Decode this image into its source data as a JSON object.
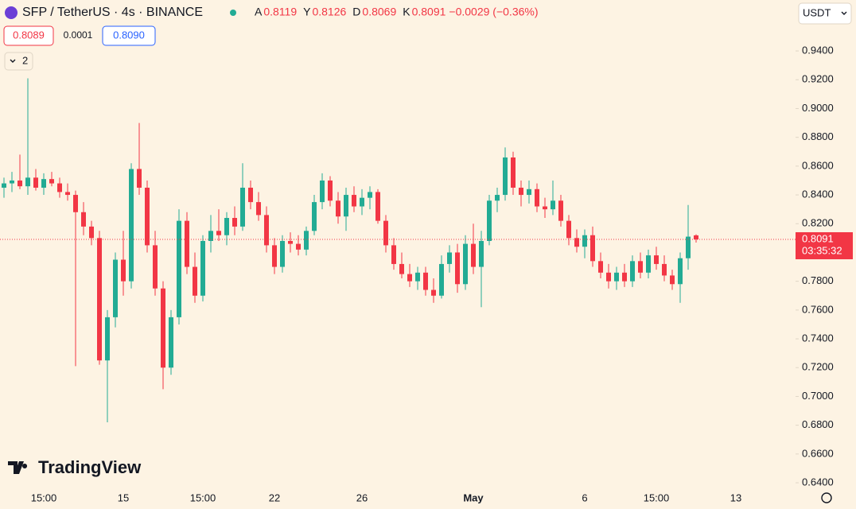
{
  "chart_data": {
    "type": "candlestick",
    "title": "SFP / TetherUS · 4s · BINANCE",
    "legend_labels": [
      "A",
      "Y",
      "D",
      "K"
    ],
    "change": "−0.0029 (−0.36%)",
    "bid": 0.8089,
    "spread": 0.0001,
    "ask": {
      "value": 0.809,
      "label": "0.8090"
    },
    "indicators_count": 2,
    "currency": "USDT",
    "brand": "TradingView",
    "countdown": "03:35:32",
    "up_color": "#22ab94",
    "down_color": "#f23645",
    "grid": false,
    "categories": [
      null,
      null,
      null,
      null,
      null,
      "15:00",
      null,
      null,
      null,
      null,
      null,
      null,
      null,
      null,
      null,
      "15",
      null,
      null,
      null,
      null,
      null,
      null,
      null,
      null,
      null,
      "15:00",
      null,
      null,
      null,
      null,
      null,
      null,
      null,
      null,
      "22",
      null,
      null,
      null,
      null,
      null,
      null,
      null,
      null,
      null,
      null,
      "26",
      null,
      null,
      null,
      null,
      null,
      null,
      null,
      null,
      null,
      null,
      null,
      null,
      null,
      "May",
      null,
      null,
      null,
      null,
      null,
      null,
      null,
      null,
      null,
      null,
      null,
      null,
      null,
      "6",
      null,
      null,
      null,
      null,
      null,
      null,
      null,
      null,
      "15:00",
      null,
      null,
      null,
      null,
      null,
      null,
      null,
      null,
      null,
      "13",
      null,
      null,
      null,
      null,
      null,
      null,
      null
    ],
    "ohlc": [
      [
        0.845,
        0.852,
        0.838,
        0.848
      ],
      [
        0.848,
        0.856,
        0.842,
        0.85
      ],
      [
        0.85,
        0.868,
        0.844,
        0.846
      ],
      [
        0.846,
        0.921,
        0.84,
        0.852
      ],
      [
        0.852,
        0.858,
        0.843,
        0.845
      ],
      [
        0.845,
        0.855,
        0.84,
        0.851
      ],
      [
        0.851,
        0.856,
        0.846,
        0.848
      ],
      [
        0.848,
        0.852,
        0.838,
        0.842
      ],
      [
        0.842,
        0.848,
        0.836,
        0.84
      ],
      [
        0.84,
        0.843,
        0.721,
        0.828
      ],
      [
        0.828,
        0.835,
        0.812,
        0.818
      ],
      [
        0.818,
        0.822,
        0.805,
        0.81
      ],
      [
        0.81,
        0.815,
        0.722,
        0.725
      ],
      [
        0.725,
        0.76,
        0.682,
        0.755
      ],
      [
        0.755,
        0.8,
        0.748,
        0.795
      ],
      [
        0.795,
        0.815,
        0.77,
        0.78
      ],
      [
        0.78,
        0.862,
        0.775,
        0.858
      ],
      [
        0.858,
        0.89,
        0.84,
        0.845
      ],
      [
        0.845,
        0.85,
        0.8,
        0.805
      ],
      [
        0.805,
        0.815,
        0.77,
        0.775
      ],
      [
        0.775,
        0.78,
        0.705,
        0.72
      ],
      [
        0.72,
        0.76,
        0.715,
        0.755
      ],
      [
        0.755,
        0.83,
        0.75,
        0.822
      ],
      [
        0.822,
        0.828,
        0.785,
        0.79
      ],
      [
        0.79,
        0.8,
        0.765,
        0.77
      ],
      [
        0.77,
        0.812,
        0.766,
        0.808
      ],
      [
        0.808,
        0.826,
        0.8,
        0.815
      ],
      [
        0.815,
        0.83,
        0.808,
        0.812
      ],
      [
        0.812,
        0.828,
        0.805,
        0.824
      ],
      [
        0.824,
        0.832,
        0.812,
        0.818
      ],
      [
        0.818,
        0.862,
        0.815,
        0.845
      ],
      [
        0.845,
        0.85,
        0.83,
        0.835
      ],
      [
        0.835,
        0.842,
        0.822,
        0.826
      ],
      [
        0.826,
        0.832,
        0.8,
        0.805
      ],
      [
        0.805,
        0.81,
        0.785,
        0.79
      ],
      [
        0.79,
        0.812,
        0.786,
        0.808
      ],
      [
        0.808,
        0.814,
        0.8,
        0.806
      ],
      [
        0.806,
        0.812,
        0.798,
        0.802
      ],
      [
        0.802,
        0.818,
        0.798,
        0.815
      ],
      [
        0.815,
        0.84,
        0.812,
        0.835
      ],
      [
        0.835,
        0.855,
        0.83,
        0.85
      ],
      [
        0.85,
        0.853,
        0.832,
        0.836
      ],
      [
        0.836,
        0.842,
        0.82,
        0.825
      ],
      [
        0.825,
        0.845,
        0.815,
        0.84
      ],
      [
        0.84,
        0.846,
        0.828,
        0.832
      ],
      [
        0.832,
        0.844,
        0.826,
        0.838
      ],
      [
        0.838,
        0.846,
        0.83,
        0.842
      ],
      [
        0.842,
        0.844,
        0.82,
        0.822
      ],
      [
        0.822,
        0.826,
        0.8,
        0.805
      ],
      [
        0.805,
        0.81,
        0.788,
        0.792
      ],
      [
        0.792,
        0.8,
        0.782,
        0.785
      ],
      [
        0.785,
        0.792,
        0.776,
        0.78
      ],
      [
        0.78,
        0.79,
        0.774,
        0.786
      ],
      [
        0.786,
        0.79,
        0.77,
        0.774
      ],
      [
        0.774,
        0.782,
        0.765,
        0.77
      ],
      [
        0.77,
        0.798,
        0.768,
        0.792
      ],
      [
        0.792,
        0.805,
        0.786,
        0.8
      ],
      [
        0.8,
        0.806,
        0.772,
        0.778
      ],
      [
        0.778,
        0.812,
        0.774,
        0.806
      ],
      [
        0.806,
        0.82,
        0.785,
        0.79
      ],
      [
        0.79,
        0.815,
        0.762,
        0.808
      ],
      [
        0.808,
        0.84,
        0.805,
        0.836
      ],
      [
        0.836,
        0.845,
        0.828,
        0.84
      ],
      [
        0.84,
        0.873,
        0.836,
        0.866
      ],
      [
        0.866,
        0.87,
        0.84,
        0.845
      ],
      [
        0.845,
        0.85,
        0.832,
        0.84
      ],
      [
        0.84,
        0.85,
        0.834,
        0.844
      ],
      [
        0.844,
        0.848,
        0.828,
        0.832
      ],
      [
        0.832,
        0.838,
        0.824,
        0.83
      ],
      [
        0.83,
        0.85,
        0.826,
        0.836
      ],
      [
        0.836,
        0.84,
        0.818,
        0.822
      ],
      [
        0.822,
        0.826,
        0.805,
        0.81
      ],
      [
        0.81,
        0.816,
        0.8,
        0.804
      ],
      [
        0.804,
        0.816,
        0.796,
        0.812
      ],
      [
        0.812,
        0.818,
        0.79,
        0.794
      ],
      [
        0.794,
        0.8,
        0.782,
        0.786
      ],
      [
        0.786,
        0.792,
        0.775,
        0.78
      ],
      [
        0.78,
        0.79,
        0.774,
        0.786
      ],
      [
        0.786,
        0.792,
        0.776,
        0.78
      ],
      [
        0.78,
        0.798,
        0.776,
        0.794
      ],
      [
        0.794,
        0.8,
        0.782,
        0.786
      ],
      [
        0.786,
        0.802,
        0.782,
        0.798
      ],
      [
        0.798,
        0.804,
        0.788,
        0.792
      ],
      [
        0.792,
        0.798,
        0.78,
        0.784
      ],
      [
        0.784,
        0.788,
        0.774,
        0.778
      ],
      [
        0.778,
        0.8,
        0.765,
        0.796
      ],
      [
        0.796,
        0.833,
        0.788,
        0.811
      ],
      [
        0.8119,
        0.8126,
        0.8069,
        0.8091
      ],
      null,
      null,
      null,
      null,
      null,
      null,
      null,
      null,
      null,
      null,
      null,
      null
    ],
    "ylim": [
      0.6356,
      0.9754
    ],
    "yticks": [
      {
        "value": 0.94,
        "label": "0.9400"
      },
      {
        "value": 0.92,
        "label": "0.9200"
      },
      {
        "value": 0.9,
        "label": "0.9000"
      },
      {
        "value": 0.88,
        "label": "0.8800"
      },
      {
        "value": 0.86,
        "label": "0.8600"
      },
      {
        "value": 0.84,
        "label": "0.8400"
      },
      {
        "value": 0.82,
        "label": "0.8200"
      },
      {
        "value": 0.8,
        "label": "0.8000"
      },
      {
        "value": 0.78,
        "label": "0.7800"
      },
      {
        "value": 0.76,
        "label": "0.7600"
      },
      {
        "value": 0.74,
        "label": "0.7400"
      },
      {
        "value": 0.72,
        "label": "0.7200"
      },
      {
        "value": 0.7,
        "label": "0.7000"
      },
      {
        "value": 0.68,
        "label": "0.6800"
      },
      {
        "value": 0.66,
        "label": "0.6600"
      },
      {
        "value": 0.64,
        "label": "0.6400"
      }
    ]
  }
}
